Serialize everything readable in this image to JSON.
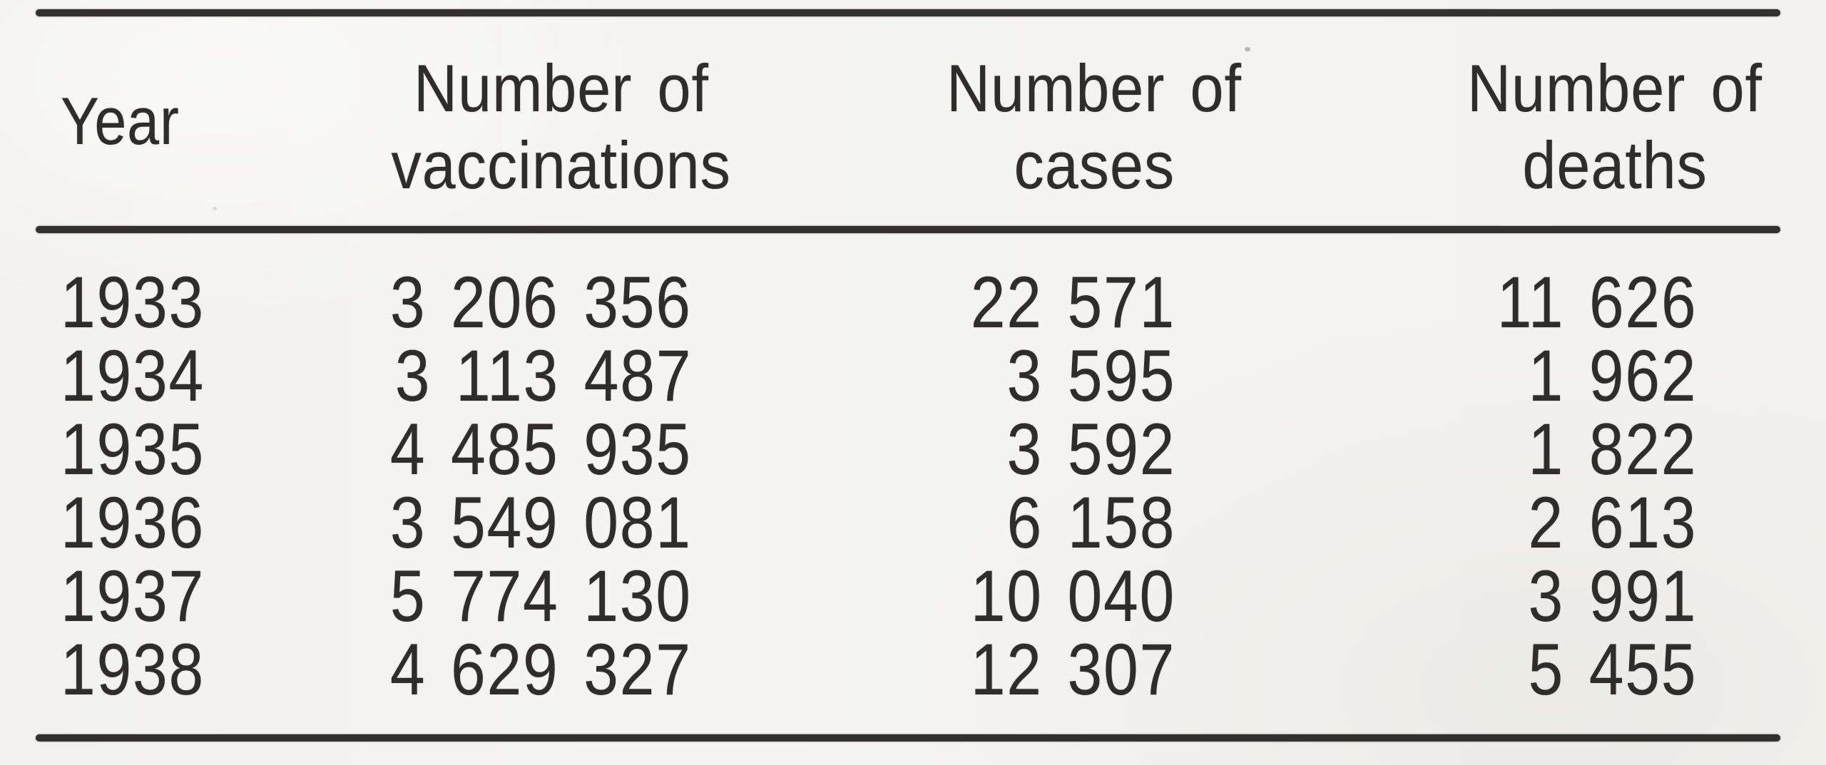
{
  "document": {
    "kind": "scanned-printed-table",
    "colors": {
      "paper": "#f3f2ee",
      "ink": "#2f2d2a",
      "rule": "#33312d"
    }
  },
  "headers": {
    "year": "Year",
    "vaccinations": [
      "Number of",
      "vaccinations"
    ],
    "cases": [
      "Number of",
      "cases"
    ],
    "deaths": [
      "Number of",
      "deaths"
    ]
  },
  "table": {
    "rows": [
      {
        "year": "1933",
        "vaccinations": "3 206 356",
        "cases": "22 571",
        "deaths": "11 626"
      },
      {
        "year": "1934",
        "vaccinations": "3 113 487",
        "cases": "3 595",
        "deaths": "1 962"
      },
      {
        "year": "1935",
        "vaccinations": "4 485 935",
        "cases": "3 592",
        "deaths": "1 822"
      },
      {
        "year": "1936",
        "vaccinations": "3 549 081",
        "cases": "6 158",
        "deaths": "2 613"
      },
      {
        "year": "1937",
        "vaccinations": "5 774 130",
        "cases": "10 040",
        "deaths": "3 991"
      },
      {
        "year": "1938",
        "vaccinations": "4 629 327",
        "cases": "12 307",
        "deaths": "5 455"
      }
    ]
  },
  "chart_data": {
    "type": "table",
    "columns": [
      "Year",
      "Number of vaccinations",
      "Number of cases",
      "Number of deaths"
    ],
    "rows": [
      [
        1933,
        3206356,
        22571,
        11626
      ],
      [
        1934,
        3113487,
        3595,
        1962
      ],
      [
        1935,
        4485935,
        3592,
        1822
      ],
      [
        1936,
        3549081,
        6158,
        2613
      ],
      [
        1937,
        5774130,
        10040,
        3991
      ],
      [
        1938,
        4629327,
        12307,
        5455
      ]
    ]
  }
}
